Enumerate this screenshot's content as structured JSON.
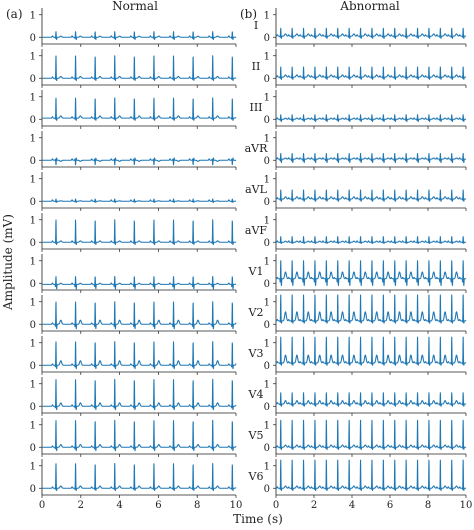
{
  "panel_letters": [
    "(a)",
    "(b)"
  ],
  "ylabel": "Amplitude (mV)",
  "xlabel": "Time (s)",
  "chart_data": [
    {
      "type": "line",
      "panel_letter": "(a)",
      "title": "Normal",
      "color": "#1f77b4",
      "xlim": [
        0,
        10
      ],
      "xticks": [
        0,
        2,
        4,
        6,
        8,
        10
      ],
      "ylim": [
        -0.3,
        1.3
      ],
      "yticks": [
        0,
        1
      ],
      "leads": [
        {
          "lead": "I",
          "rpeak": 0.25,
          "baseline": 0.0,
          "t_wave": 0.05,
          "q_dip": -0.1,
          "beat_times": [
            0.72,
            1.73,
            2.74,
            3.75,
            4.76,
            5.77,
            6.78,
            7.79,
            8.8,
            9.81
          ]
        },
        {
          "lead": "II",
          "rpeak": 1.0,
          "baseline": 0.0,
          "t_wave": 0.08,
          "q_dip": -0.1,
          "beat_times": [
            0.72,
            1.73,
            2.74,
            3.75,
            4.76,
            5.77,
            6.78,
            7.79,
            8.8,
            9.81
          ]
        },
        {
          "lead": "III",
          "rpeak": 0.95,
          "baseline": 0.05,
          "t_wave": 0.1,
          "q_dip": -0.1,
          "beat_times": [
            0.72,
            1.73,
            2.74,
            3.75,
            4.76,
            5.77,
            6.78,
            7.79,
            8.8,
            9.81
          ]
        },
        {
          "lead": "aVR",
          "rpeak": -0.2,
          "baseline": 0.0,
          "t_wave": -0.05,
          "q_dip": 0.1,
          "beat_times": [
            0.72,
            1.73,
            2.74,
            3.75,
            4.76,
            5.77,
            6.78,
            7.79,
            8.8,
            9.81
          ]
        },
        {
          "lead": "aVL",
          "rpeak": 0.1,
          "baseline": 0.0,
          "t_wave": 0.02,
          "q_dip": -0.05,
          "beat_times": [
            0.72,
            1.73,
            2.74,
            3.75,
            4.76,
            5.77,
            6.78,
            7.79,
            8.8,
            9.81
          ]
        },
        {
          "lead": "aVF",
          "rpeak": 1.0,
          "baseline": 0.0,
          "t_wave": 0.06,
          "q_dip": -0.1,
          "beat_times": [
            0.72,
            1.73,
            2.74,
            3.75,
            4.76,
            5.77,
            6.78,
            7.79,
            8.8,
            9.81
          ]
        },
        {
          "lead": "V1",
          "rpeak": 0.3,
          "baseline": -0.05,
          "t_wave": 0.05,
          "q_dip": -0.2,
          "beat_times": [
            0.72,
            1.73,
            2.74,
            3.75,
            4.76,
            5.77,
            6.78,
            7.79,
            8.8,
            9.81
          ]
        },
        {
          "lead": "V2",
          "rpeak": 1.0,
          "baseline": 0.0,
          "t_wave": 0.18,
          "q_dip": -0.2,
          "beat_times": [
            0.72,
            1.73,
            2.74,
            3.75,
            4.76,
            5.77,
            6.78,
            7.79,
            8.8,
            9.81
          ]
        },
        {
          "lead": "V3",
          "rpeak": 1.05,
          "baseline": 0.0,
          "t_wave": 0.2,
          "q_dip": -0.15,
          "beat_times": [
            0.72,
            1.73,
            2.74,
            3.75,
            4.76,
            5.77,
            6.78,
            7.79,
            8.8,
            9.81
          ]
        },
        {
          "lead": "V4",
          "rpeak": 1.2,
          "baseline": 0.0,
          "t_wave": 0.15,
          "q_dip": -0.15,
          "beat_times": [
            0.72,
            1.73,
            2.74,
            3.75,
            4.76,
            5.77,
            6.78,
            7.79,
            8.8,
            9.81
          ]
        },
        {
          "lead": "V5",
          "rpeak": 1.2,
          "baseline": 0.0,
          "t_wave": 0.12,
          "q_dip": -0.15,
          "beat_times": [
            0.72,
            1.73,
            2.74,
            3.75,
            4.76,
            5.77,
            6.78,
            7.79,
            8.8,
            9.81
          ]
        },
        {
          "lead": "V6",
          "rpeak": 1.1,
          "baseline": 0.0,
          "t_wave": 0.1,
          "q_dip": -0.1,
          "beat_times": [
            0.72,
            1.73,
            2.74,
            3.75,
            4.76,
            5.77,
            6.78,
            7.79,
            8.8,
            9.81
          ]
        }
      ]
    },
    {
      "type": "line",
      "panel_letter": "(b)",
      "title": "Abnormal",
      "color": "#1f77b4",
      "xlim": [
        0,
        10
      ],
      "xticks": [
        0,
        2,
        4,
        6,
        8,
        10
      ],
      "ylim": [
        -0.3,
        1.3
      ],
      "yticks": [
        0,
        1
      ],
      "leads": [
        {
          "lead": "I",
          "rpeak": 0.4,
          "baseline": 0.05,
          "t_wave": 0.1,
          "q_dip": -0.1,
          "beat_times": [
            0.25,
            0.85,
            1.45,
            2.05,
            2.65,
            3.25,
            3.85,
            4.45,
            5.05,
            5.65,
            6.25,
            6.85,
            7.45,
            8.05,
            8.65,
            9.25,
            9.85
          ]
        },
        {
          "lead": "II",
          "rpeak": 0.5,
          "baseline": 0.05,
          "t_wave": 0.1,
          "q_dip": -0.1,
          "beat_times": [
            0.25,
            0.85,
            1.45,
            2.05,
            2.65,
            3.25,
            3.85,
            4.45,
            5.05,
            5.65,
            6.25,
            6.85,
            7.45,
            8.05,
            8.65,
            9.25,
            9.85
          ]
        },
        {
          "lead": "III",
          "rpeak": 0.2,
          "baseline": 0.0,
          "t_wave": 0.05,
          "q_dip": -0.1,
          "beat_times": [
            0.25,
            0.85,
            1.45,
            2.05,
            2.65,
            3.25,
            3.85,
            4.45,
            5.05,
            5.65,
            6.25,
            6.85,
            7.45,
            8.05,
            8.65,
            9.25,
            9.85
          ]
        },
        {
          "lead": "aVR",
          "rpeak": 0.3,
          "baseline": 0.05,
          "t_wave": 0.05,
          "q_dip": -0.15,
          "beat_times": [
            0.25,
            0.85,
            1.45,
            2.05,
            2.65,
            3.25,
            3.85,
            4.45,
            5.05,
            5.65,
            6.25,
            6.85,
            7.45,
            8.05,
            8.65,
            9.25,
            9.85
          ]
        },
        {
          "lead": "aVL",
          "rpeak": 0.5,
          "baseline": 0.1,
          "t_wave": 0.1,
          "q_dip": -0.1,
          "beat_times": [
            0.25,
            0.85,
            1.45,
            2.05,
            2.65,
            3.25,
            3.85,
            4.45,
            5.05,
            5.65,
            6.25,
            6.85,
            7.45,
            8.05,
            8.65,
            9.25,
            9.85
          ]
        },
        {
          "lead": "aVF",
          "rpeak": 0.25,
          "baseline": 0.0,
          "t_wave": 0.05,
          "q_dip": -0.05,
          "beat_times": [
            0.25,
            0.85,
            1.45,
            2.05,
            2.65,
            3.25,
            3.85,
            4.45,
            5.05,
            5.65,
            6.25,
            6.85,
            7.45,
            8.05,
            8.65,
            9.25,
            9.85
          ]
        },
        {
          "lead": "V1",
          "rpeak": 1.0,
          "baseline": 0.2,
          "t_wave": 0.3,
          "q_dip": -0.3,
          "beat_times": [
            0.25,
            0.85,
            1.45,
            2.05,
            2.65,
            3.25,
            3.85,
            4.45,
            5.05,
            5.65,
            6.25,
            6.85,
            7.45,
            8.05,
            8.65,
            9.25,
            9.85
          ]
        },
        {
          "lead": "V2",
          "rpeak": 1.3,
          "baseline": 0.15,
          "t_wave": 0.4,
          "q_dip": -0.1,
          "beat_times": [
            0.25,
            0.85,
            1.45,
            2.05,
            2.65,
            3.25,
            3.85,
            4.45,
            5.05,
            5.65,
            6.25,
            6.85,
            7.45,
            8.05,
            8.65,
            9.25,
            9.85
          ]
        },
        {
          "lead": "V3",
          "rpeak": 1.25,
          "baseline": 0.1,
          "t_wave": 0.35,
          "q_dip": -0.1,
          "beat_times": [
            0.25,
            0.85,
            1.45,
            2.05,
            2.65,
            3.25,
            3.85,
            4.45,
            5.05,
            5.65,
            6.25,
            6.85,
            7.45,
            8.05,
            8.65,
            9.25,
            9.85
          ]
        },
        {
          "lead": "V4",
          "rpeak": 0.6,
          "baseline": 0.1,
          "t_wave": 0.15,
          "q_dip": -0.1,
          "beat_times": [
            0.25,
            0.85,
            1.45,
            2.05,
            2.65,
            3.25,
            3.85,
            4.45,
            5.05,
            5.65,
            6.25,
            6.85,
            7.45,
            8.05,
            8.65,
            9.25,
            9.85
          ]
        },
        {
          "lead": "V5",
          "rpeak": 1.2,
          "baseline": 0.0,
          "t_wave": 0.1,
          "q_dip": -0.1,
          "beat_times": [
            0.25,
            0.85,
            1.45,
            2.05,
            2.65,
            3.25,
            3.85,
            4.45,
            5.05,
            5.65,
            6.25,
            6.85,
            7.45,
            8.05,
            8.65,
            9.25,
            9.85
          ]
        },
        {
          "lead": "V6",
          "rpeak": 1.25,
          "baseline": 0.0,
          "t_wave": 0.1,
          "q_dip": -0.1,
          "beat_times": [
            0.25,
            0.85,
            1.45,
            2.05,
            2.65,
            3.25,
            3.85,
            4.45,
            5.05,
            5.65,
            6.25,
            6.85,
            7.45,
            8.05,
            8.65,
            9.25,
            9.85
          ]
        }
      ]
    }
  ]
}
